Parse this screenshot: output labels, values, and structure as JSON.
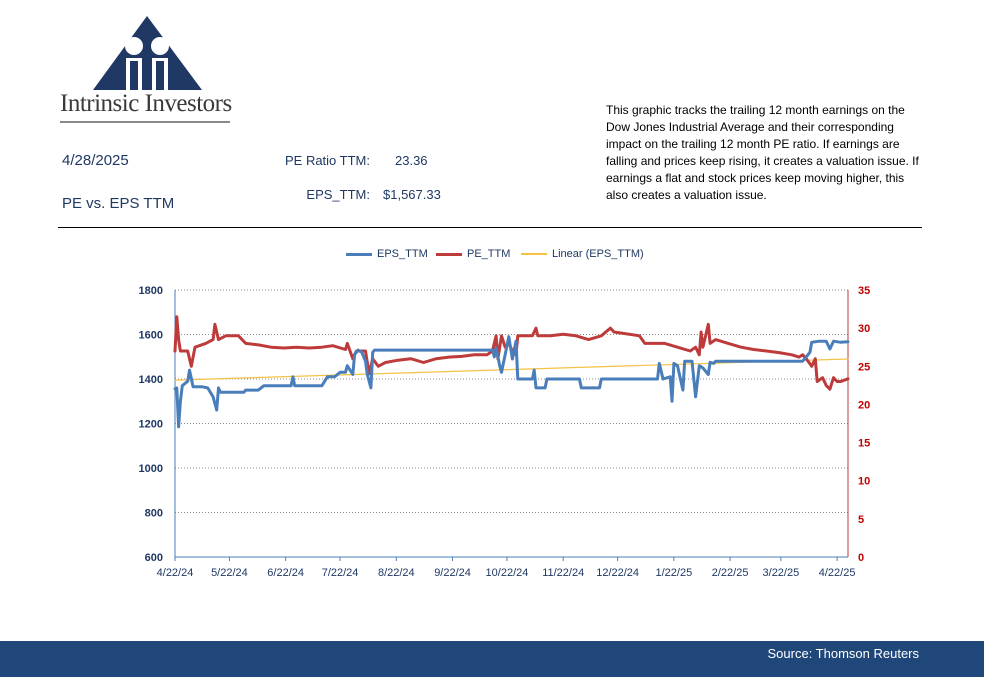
{
  "header": {
    "logo_text": "Intrinsic Investors",
    "date": "4/28/2025",
    "subtitle": "PE vs. EPS TTM",
    "pe_label": "PE Ratio TTM:",
    "pe_value": "23.36",
    "eps_label": "EPS_TTM:",
    "eps_value": "$1,567.33",
    "description": "This graphic tracks the trailing 12 month earnings on the Dow Jones Industrial Average and their corresponding impact on the trailing 12 month PE ratio.  If earnings are falling and prices keep rising, it creates a valuation issue.  If earnings a flat and stock prices keep moving higher, this also creates a valuation issue."
  },
  "footer": {
    "source": "Source: Thomson Reuters"
  },
  "colors": {
    "eps": "#4a7ebb",
    "pe": "#be3b3b",
    "trend": "#f5c242",
    "navy": "#1f477a",
    "axis_right": "#c00000"
  },
  "chart_data": {
    "type": "line",
    "legend": [
      "EPS_TTM",
      "PE_TTM",
      "Linear (EPS_TTM)"
    ],
    "legend_position": "top",
    "x_ticks": [
      "4/22/24",
      "5/22/24",
      "6/22/24",
      "7/22/24",
      "8/22/24",
      "9/22/24",
      "10/22/24",
      "11/22/24",
      "12/22/24",
      "1/22/25",
      "2/22/25",
      "3/22/25",
      "4/22/25"
    ],
    "x_range": [
      "2024-04-22",
      "2025-04-28"
    ],
    "y_left": {
      "min": 600,
      "max": 1800,
      "step": 200,
      "ticks": [
        "600",
        "800",
        "1000",
        "1200",
        "1400",
        "1600",
        "1800"
      ]
    },
    "y_right": {
      "min": 0,
      "max": 35,
      "step": 5,
      "ticks": [
        "0",
        "5",
        "10",
        "15",
        "20",
        "25",
        "30",
        "35"
      ]
    },
    "grid": "horizontal dotted",
    "series": [
      {
        "name": "EPS_TTM",
        "axis": "left",
        "points": [
          [
            "2024-04-22",
            1355
          ],
          [
            "2024-04-23",
            1360
          ],
          [
            "2024-04-24",
            1185
          ],
          [
            "2024-04-25",
            1300
          ],
          [
            "2024-04-26",
            1370
          ],
          [
            "2024-04-29",
            1390
          ],
          [
            "2024-04-30",
            1440
          ],
          [
            "2024-05-02",
            1365
          ],
          [
            "2024-05-07",
            1365
          ],
          [
            "2024-05-10",
            1360
          ],
          [
            "2024-05-13",
            1320
          ],
          [
            "2024-05-15",
            1260
          ],
          [
            "2024-05-16",
            1360
          ],
          [
            "2024-05-17",
            1340
          ],
          [
            "2024-05-24",
            1340
          ],
          [
            "2024-05-30",
            1340
          ],
          [
            "2024-05-31",
            1350
          ],
          [
            "2024-06-07",
            1350
          ],
          [
            "2024-06-10",
            1370
          ],
          [
            "2024-06-20",
            1370
          ],
          [
            "2024-06-25",
            1370
          ],
          [
            "2024-06-26",
            1410
          ],
          [
            "2024-06-27",
            1370
          ],
          [
            "2024-07-05",
            1370
          ],
          [
            "2024-07-12",
            1370
          ],
          [
            "2024-07-15",
            1410
          ],
          [
            "2024-07-19",
            1410
          ],
          [
            "2024-07-22",
            1430
          ],
          [
            "2024-07-25",
            1430
          ],
          [
            "2024-07-26",
            1460
          ],
          [
            "2024-07-29",
            1420
          ],
          [
            "2024-07-30",
            1510
          ],
          [
            "2024-08-01",
            1530
          ],
          [
            "2024-08-03",
            1520
          ],
          [
            "2024-08-05",
            1480
          ],
          [
            "2024-08-06",
            1420
          ],
          [
            "2024-08-08",
            1360
          ],
          [
            "2024-08-09",
            1520
          ],
          [
            "2024-08-10",
            1530
          ],
          [
            "2024-10-14",
            1530
          ],
          [
            "2024-10-15",
            1500
          ],
          [
            "2024-10-16",
            1540
          ],
          [
            "2024-10-18",
            1460
          ],
          [
            "2024-10-19",
            1430
          ],
          [
            "2024-10-21",
            1510
          ],
          [
            "2024-10-23",
            1590
          ],
          [
            "2024-10-25",
            1490
          ],
          [
            "2024-10-27",
            1570
          ],
          [
            "2024-10-28",
            1400
          ],
          [
            "2024-11-05",
            1400
          ],
          [
            "2024-11-06",
            1440
          ],
          [
            "2024-11-07",
            1360
          ],
          [
            "2024-11-12",
            1360
          ],
          [
            "2024-11-13",
            1400
          ],
          [
            "2024-12-01",
            1400
          ],
          [
            "2024-12-02",
            1360
          ],
          [
            "2024-12-12",
            1360
          ],
          [
            "2024-12-13",
            1400
          ],
          [
            "2025-01-13",
            1400
          ],
          [
            "2025-01-14",
            1470
          ],
          [
            "2025-01-16",
            1400
          ],
          [
            "2025-01-20",
            1410
          ],
          [
            "2025-01-21",
            1300
          ],
          [
            "2025-01-22",
            1470
          ],
          [
            "2025-01-24",
            1460
          ],
          [
            "2025-01-27",
            1350
          ],
          [
            "2025-01-28",
            1480
          ],
          [
            "2025-02-01",
            1480
          ],
          [
            "2025-02-03",
            1320
          ],
          [
            "2025-02-05",
            1460
          ],
          [
            "2025-02-07",
            1450
          ],
          [
            "2025-02-10",
            1420
          ],
          [
            "2025-02-11",
            1475
          ],
          [
            "2025-02-13",
            1470
          ],
          [
            "2025-02-14",
            1480
          ],
          [
            "2025-03-15",
            1480
          ],
          [
            "2025-04-03",
            1480
          ],
          [
            "2025-04-05",
            1500
          ],
          [
            "2025-04-07",
            1520
          ],
          [
            "2025-04-08",
            1565
          ],
          [
            "2025-04-12",
            1570
          ],
          [
            "2025-04-16",
            1570
          ],
          [
            "2025-04-18",
            1535
          ],
          [
            "2025-04-20",
            1570
          ],
          [
            "2025-04-24",
            1565
          ],
          [
            "2025-04-28",
            1567
          ]
        ]
      },
      {
        "name": "PE_TTM",
        "axis": "right",
        "points": [
          [
            "2024-04-22",
            27.0
          ],
          [
            "2024-04-23",
            31.5
          ],
          [
            "2024-04-24",
            28.5
          ],
          [
            "2024-04-25",
            27.0
          ],
          [
            "2024-04-29",
            27.0
          ],
          [
            "2024-05-01",
            25.0
          ],
          [
            "2024-05-03",
            27.5
          ],
          [
            "2024-05-09",
            28.0
          ],
          [
            "2024-05-13",
            28.5
          ],
          [
            "2024-05-14",
            30.5
          ],
          [
            "2024-05-16",
            28.5
          ],
          [
            "2024-05-20",
            29.0
          ],
          [
            "2024-05-27",
            29.0
          ],
          [
            "2024-05-31",
            28.0
          ],
          [
            "2024-06-07",
            27.8
          ],
          [
            "2024-06-14",
            27.5
          ],
          [
            "2024-06-21",
            27.4
          ],
          [
            "2024-06-28",
            27.5
          ],
          [
            "2024-07-05",
            27.4
          ],
          [
            "2024-07-12",
            27.5
          ],
          [
            "2024-07-18",
            27.7
          ],
          [
            "2024-07-25",
            27.2
          ],
          [
            "2024-07-26",
            28.0
          ],
          [
            "2024-07-29",
            26.0
          ],
          [
            "2024-07-31",
            27.0
          ],
          [
            "2024-08-05",
            27.0
          ],
          [
            "2024-08-07",
            24.0
          ],
          [
            "2024-08-09",
            26.0
          ],
          [
            "2024-08-12",
            25.0
          ],
          [
            "2024-08-16",
            25.5
          ],
          [
            "2024-08-23",
            25.8
          ],
          [
            "2024-08-30",
            26.0
          ],
          [
            "2024-09-06",
            25.5
          ],
          [
            "2024-09-13",
            26.0
          ],
          [
            "2024-09-20",
            26.2
          ],
          [
            "2024-09-27",
            26.3
          ],
          [
            "2024-10-04",
            26.5
          ],
          [
            "2024-10-11",
            26.5
          ],
          [
            "2024-10-14",
            27.0
          ],
          [
            "2024-10-16",
            29.0
          ],
          [
            "2024-10-17",
            26.0
          ],
          [
            "2024-10-19",
            29.0
          ],
          [
            "2024-10-21",
            27.5
          ],
          [
            "2024-10-23",
            28.0
          ],
          [
            "2024-10-25",
            27.0
          ],
          [
            "2024-10-27",
            26.5
          ],
          [
            "2024-10-28",
            29.0
          ],
          [
            "2024-11-05",
            29.0
          ],
          [
            "2024-11-07",
            30.0
          ],
          [
            "2024-11-08",
            29.0
          ],
          [
            "2024-11-15",
            29.0
          ],
          [
            "2024-11-22",
            29.2
          ],
          [
            "2024-11-29",
            29.0
          ],
          [
            "2024-12-06",
            28.5
          ],
          [
            "2024-12-13",
            29.0
          ],
          [
            "2024-12-18",
            30.0
          ],
          [
            "2024-12-20",
            29.5
          ],
          [
            "2025-01-03",
            29.0
          ],
          [
            "2025-01-06",
            28.0
          ],
          [
            "2025-01-17",
            28.0
          ],
          [
            "2025-01-24",
            27.5
          ],
          [
            "2025-01-31",
            27.0
          ],
          [
            "2025-02-03",
            27.5
          ],
          [
            "2025-02-05",
            26.5
          ],
          [
            "2025-02-06",
            29.5
          ],
          [
            "2025-02-07",
            27.5
          ],
          [
            "2025-02-10",
            30.5
          ],
          [
            "2025-02-11",
            28.0
          ],
          [
            "2025-02-14",
            28.5
          ],
          [
            "2025-02-21",
            28.0
          ],
          [
            "2025-02-28",
            27.5
          ],
          [
            "2025-03-07",
            27.2
          ],
          [
            "2025-03-14",
            27.0
          ],
          [
            "2025-03-21",
            26.8
          ],
          [
            "2025-03-28",
            26.5
          ],
          [
            "2025-04-01",
            26.2
          ],
          [
            "2025-04-03",
            26.5
          ],
          [
            "2025-04-05",
            26.0
          ],
          [
            "2025-04-08",
            25.0
          ],
          [
            "2025-04-10",
            26.0
          ],
          [
            "2025-04-11",
            23.0
          ],
          [
            "2025-04-14",
            23.5
          ],
          [
            "2025-04-16",
            22.5
          ],
          [
            "2025-04-18",
            22.0
          ],
          [
            "2025-04-20",
            23.5
          ],
          [
            "2025-04-22",
            23.0
          ],
          [
            "2025-04-24",
            23.0
          ],
          [
            "2025-04-28",
            23.36
          ]
        ]
      },
      {
        "name": "Linear (EPS_TTM)",
        "axis": "left",
        "style": "linear-trend",
        "points": [
          [
            "2024-04-22",
            1395
          ],
          [
            "2025-04-28",
            1490
          ]
        ]
      }
    ]
  }
}
